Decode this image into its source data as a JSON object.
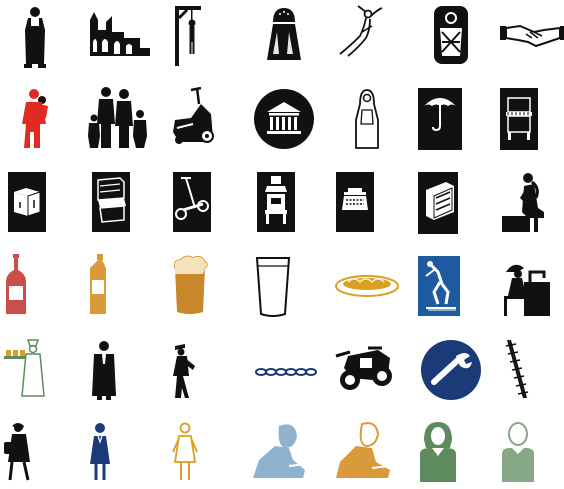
{
  "palette": {
    "black": "#111111",
    "red": "#e02a22",
    "rust": "#c9504a",
    "amber": "#d99a3c",
    "beer": "#c9872b",
    "gold": "#d9a021",
    "navy": "#1b3b78",
    "blue": "#1d5aa0",
    "sky": "#8fb3cf",
    "green": "#5e8b5e",
    "sage": "#86a886"
  },
  "rows": [
    {
      "icons": [
        "monk-figure-icon",
        "ruined-abbey-icon",
        "gallows-icon",
        "salt-shaker-icon",
        "diver-icon",
        "swaddled-baby-icon",
        "handshake-icon"
      ]
    },
    {
      "icons": [
        "woman-carrying-child-icon",
        "family-group-icon",
        "motor-scooter-icon",
        "bank-building-icon",
        "nun-figure-icon",
        "umbrella-icon",
        "piano-icon"
      ]
    },
    {
      "icons": [
        "kitchen-cabinet-icon",
        "sideboard-icon",
        "kick-scooter-icon",
        "stove-icon",
        "typewriter-icon",
        "wardrobe-icon",
        "thinker-icon"
      ]
    },
    {
      "icons": [
        "wine-bottle-icon",
        "beer-bottle-icon",
        "beer-glass-icon",
        "water-glass-icon",
        "bread-platter-icon",
        "skier-icon",
        "seamstress-icon"
      ]
    },
    {
      "icons": [
        "baker-with-tray-icon",
        "judge-robe-icon",
        "delivery-worker-icon",
        "chain-icon",
        "motorcycle-icon",
        "wrench-icon",
        "barbed-wire-icon"
      ]
    },
    {
      "icons": [
        "woman-with-bag-icon",
        "woman-in-dress-icon",
        "girl-figure-icon",
        "woman-writing-icon",
        "child-writing-icon",
        "woman-bust-icon",
        "person-outline-icon"
      ]
    }
  ]
}
